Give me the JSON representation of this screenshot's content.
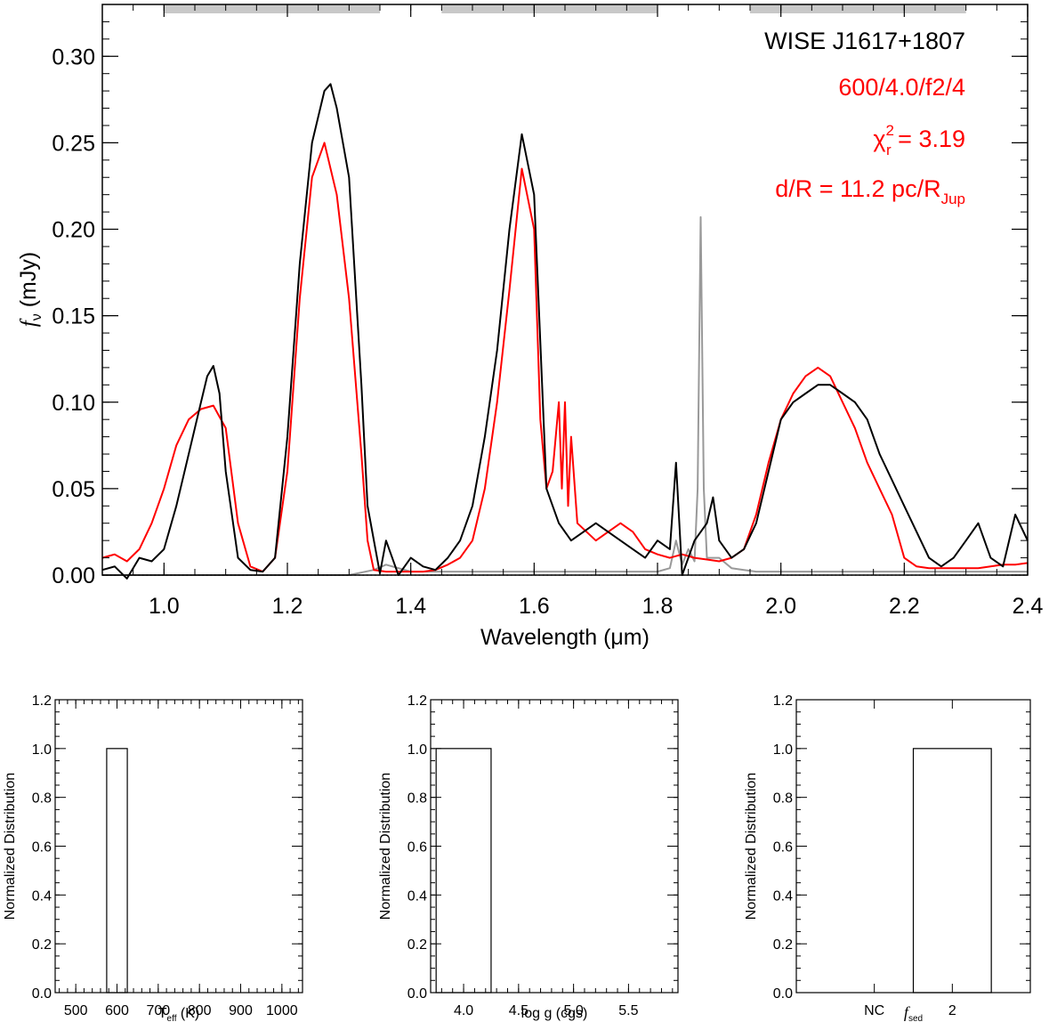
{
  "chart_data": [
    {
      "type": "line",
      "object_name": "WISE J1617+1807",
      "model_label": "600/4.0/f2/4",
      "chi2_prefix": "χ",
      "chi2_sup": "2",
      "chi2_sub": "r",
      "chi2_value": " = 3.19",
      "dr_prefix": "d/R = 11.2 pc/R",
      "dr_sub": "Jup",
      "xlabel": "Wavelength (μm)",
      "ylabel_f": "f",
      "ylabel_sub": "ν",
      "ylabel_unit": " (mJy)",
      "xlim": [
        0.9,
        2.4
      ],
      "ylim": [
        0.0,
        0.33
      ],
      "xticks": [
        1.0,
        1.2,
        1.4,
        1.6,
        1.8,
        2.0,
        2.2,
        2.4
      ],
      "xtick_labels": [
        "1.0",
        "1.2",
        "1.4",
        "1.6",
        "1.8",
        "2.0",
        "2.2",
        "2.4"
      ],
      "yticks": [
        0.0,
        0.05,
        0.1,
        0.15,
        0.2,
        0.25,
        0.3
      ],
      "ytick_labels": [
        "0.00",
        "0.05",
        "0.10",
        "0.15",
        "0.20",
        "0.25",
        "0.30"
      ],
      "fit_bands": [
        [
          1.0,
          1.35
        ],
        [
          1.45,
          1.8
        ],
        [
          1.95,
          2.3
        ]
      ],
      "colors": {
        "observed": "#000000",
        "model": "#ff0000",
        "noise": "#999999",
        "bands": "#c8c8c8"
      },
      "series": [
        {
          "role": "observed",
          "x": [
            0.9,
            0.92,
            0.94,
            0.96,
            0.98,
            1.0,
            1.02,
            1.04,
            1.06,
            1.07,
            1.08,
            1.09,
            1.1,
            1.12,
            1.14,
            1.16,
            1.18,
            1.2,
            1.22,
            1.24,
            1.26,
            1.27,
            1.28,
            1.3,
            1.32,
            1.33,
            1.35,
            1.36,
            1.38,
            1.4,
            1.42,
            1.44,
            1.46,
            1.48,
            1.5,
            1.52,
            1.54,
            1.56,
            1.58,
            1.6,
            1.62,
            1.64,
            1.66,
            1.68,
            1.7,
            1.72,
            1.74,
            1.76,
            1.78,
            1.8,
            1.82,
            1.83,
            1.84,
            1.86,
            1.88,
            1.89,
            1.9,
            1.92,
            1.94,
            1.96,
            1.98,
            2.0,
            2.02,
            2.04,
            2.06,
            2.08,
            2.1,
            2.12,
            2.14,
            2.16,
            2.18,
            2.2,
            2.22,
            2.24,
            2.26,
            2.28,
            2.3,
            2.32,
            2.34,
            2.36,
            2.38,
            2.4
          ],
          "y": [
            0.003,
            0.005,
            -0.002,
            0.01,
            0.008,
            0.015,
            0.04,
            0.07,
            0.1,
            0.115,
            0.121,
            0.105,
            0.06,
            0.01,
            0.003,
            0.002,
            0.01,
            0.08,
            0.18,
            0.25,
            0.28,
            0.284,
            0.27,
            0.23,
            0.11,
            0.04,
            0.001,
            0.02,
            0.0,
            0.01,
            0.005,
            0.003,
            0.01,
            0.02,
            0.04,
            0.08,
            0.13,
            0.2,
            0.255,
            0.22,
            0.05,
            0.03,
            0.02,
            0.025,
            0.03,
            0.025,
            0.02,
            0.015,
            0.01,
            0.02,
            0.015,
            0.065,
            0.0,
            0.02,
            0.03,
            0.045,
            0.02,
            0.01,
            0.015,
            0.03,
            0.06,
            0.09,
            0.1,
            0.105,
            0.11,
            0.11,
            0.105,
            0.1,
            0.09,
            0.07,
            0.055,
            0.04,
            0.025,
            0.01,
            0.005,
            0.01,
            0.02,
            0.03,
            0.01,
            0.005,
            0.035,
            0.02
          ]
        },
        {
          "role": "model",
          "x": [
            0.9,
            0.92,
            0.94,
            0.96,
            0.98,
            1.0,
            1.02,
            1.04,
            1.06,
            1.08,
            1.1,
            1.12,
            1.14,
            1.16,
            1.18,
            1.2,
            1.22,
            1.24,
            1.26,
            1.28,
            1.3,
            1.32,
            1.33,
            1.34,
            1.36,
            1.38,
            1.4,
            1.42,
            1.44,
            1.46,
            1.48,
            1.5,
            1.52,
            1.54,
            1.56,
            1.58,
            1.6,
            1.61,
            1.62,
            1.63,
            1.64,
            1.645,
            1.65,
            1.655,
            1.66,
            1.67,
            1.7,
            1.72,
            1.74,
            1.76,
            1.78,
            1.8,
            1.82,
            1.84,
            1.86,
            1.88,
            1.9,
            1.92,
            1.94,
            1.96,
            1.98,
            2.0,
            2.02,
            2.04,
            2.06,
            2.08,
            2.1,
            2.12,
            2.14,
            2.16,
            2.18,
            2.2,
            2.22,
            2.24,
            2.26,
            2.28,
            2.3,
            2.32,
            2.34,
            2.36,
            2.38,
            2.4
          ],
          "y": [
            0.01,
            0.012,
            0.008,
            0.015,
            0.03,
            0.05,
            0.075,
            0.09,
            0.096,
            0.098,
            0.085,
            0.03,
            0.005,
            0.002,
            0.01,
            0.06,
            0.16,
            0.23,
            0.25,
            0.22,
            0.16,
            0.07,
            0.02,
            0.003,
            0.002,
            0.002,
            0.002,
            0.002,
            0.003,
            0.006,
            0.01,
            0.02,
            0.05,
            0.1,
            0.165,
            0.235,
            0.2,
            0.09,
            0.05,
            0.06,
            0.1,
            0.05,
            0.1,
            0.04,
            0.08,
            0.03,
            0.02,
            0.025,
            0.03,
            0.025,
            0.015,
            0.012,
            0.01,
            0.012,
            0.01,
            0.009,
            0.008,
            0.01,
            0.015,
            0.035,
            0.065,
            0.09,
            0.105,
            0.115,
            0.12,
            0.115,
            0.1,
            0.085,
            0.065,
            0.05,
            0.035,
            0.01,
            0.005,
            0.004,
            0.004,
            0.004,
            0.004,
            0.004,
            0.005,
            0.006,
            0.006,
            0.007
          ]
        },
        {
          "role": "noise",
          "x": [
            0.9,
            1.3,
            1.34,
            1.36,
            1.4,
            1.8,
            1.82,
            1.83,
            1.84,
            1.85,
            1.86,
            1.865,
            1.87,
            1.875,
            1.88,
            1.9,
            1.92,
            1.94,
            1.96,
            1.98,
            2.0,
            2.2,
            2.4
          ],
          "y": [
            0.0,
            0.0,
            0.003,
            0.006,
            0.002,
            0.002,
            0.004,
            0.02,
            0.006,
            0.015,
            0.008,
            0.05,
            0.207,
            0.05,
            0.01,
            0.01,
            0.004,
            0.003,
            0.002,
            0.002,
            0.002,
            0.002,
            0.002
          ]
        },
        {
          "role": "zero-line",
          "x": [
            0.9,
            2.4
          ],
          "y": [
            0.0,
            0.0
          ]
        }
      ]
    },
    {
      "type": "bar",
      "xlabel_main": "T",
      "xlabel_sub": "eff",
      "xlabel_rest": " (K)",
      "ylabel": "Normalized Distribution",
      "xlim": [
        450,
        1050
      ],
      "ylim": [
        0.0,
        1.2
      ],
      "xticks": [
        500,
        600,
        700,
        800,
        900,
        1000
      ],
      "xtick_labels": [
        "500",
        "600",
        "700",
        "800",
        "900",
        "1000"
      ],
      "yticks": [
        0.0,
        0.2,
        0.4,
        0.6,
        0.8,
        1.0,
        1.2
      ],
      "ytick_labels": [
        "0.0",
        "0.2",
        "0.4",
        "0.6",
        "0.8",
        "1.0",
        "1.2"
      ],
      "bars": [
        {
          "center": 600,
          "width": 50,
          "value": 1.0
        }
      ]
    },
    {
      "type": "bar",
      "xlabel_main": "log g (cgs)",
      "xlabel_sub": "",
      "xlabel_rest": "",
      "ylabel": "Normalized Distribution",
      "xlim": [
        3.7,
        5.95
      ],
      "ylim": [
        0.0,
        1.2
      ],
      "xticks": [
        4.0,
        4.5,
        5.0,
        5.5
      ],
      "xtick_labels": [
        "4.0",
        "4.5",
        "5.0",
        "5.5"
      ],
      "yticks": [
        0.0,
        0.2,
        0.4,
        0.6,
        0.8,
        1.0,
        1.2
      ],
      "ytick_labels": [
        "0.0",
        "0.2",
        "0.4",
        "0.6",
        "0.8",
        "1.0",
        "1.2"
      ],
      "bars": [
        {
          "center": 4.0,
          "width": 0.5,
          "value": 1.0
        }
      ]
    },
    {
      "type": "bar",
      "xlabel_main": "f",
      "xlabel_sub": "sed",
      "xlabel_rest": "",
      "ylabel": "Normalized Distribution",
      "xlim": [
        0.0,
        3.0
      ],
      "ylim": [
        0.0,
        1.2
      ],
      "xticks": [
        1.0,
        2.0
      ],
      "xtick_labels": [
        "NC",
        "2"
      ],
      "yticks": [
        0.0,
        0.2,
        0.4,
        0.6,
        0.8,
        1.0,
        1.2
      ],
      "ytick_labels": [
        "0.0",
        "0.2",
        "0.4",
        "0.6",
        "0.8",
        "1.0",
        "1.2"
      ],
      "bars": [
        {
          "center": 2.0,
          "width": 1.0,
          "value": 1.0
        }
      ]
    }
  ]
}
